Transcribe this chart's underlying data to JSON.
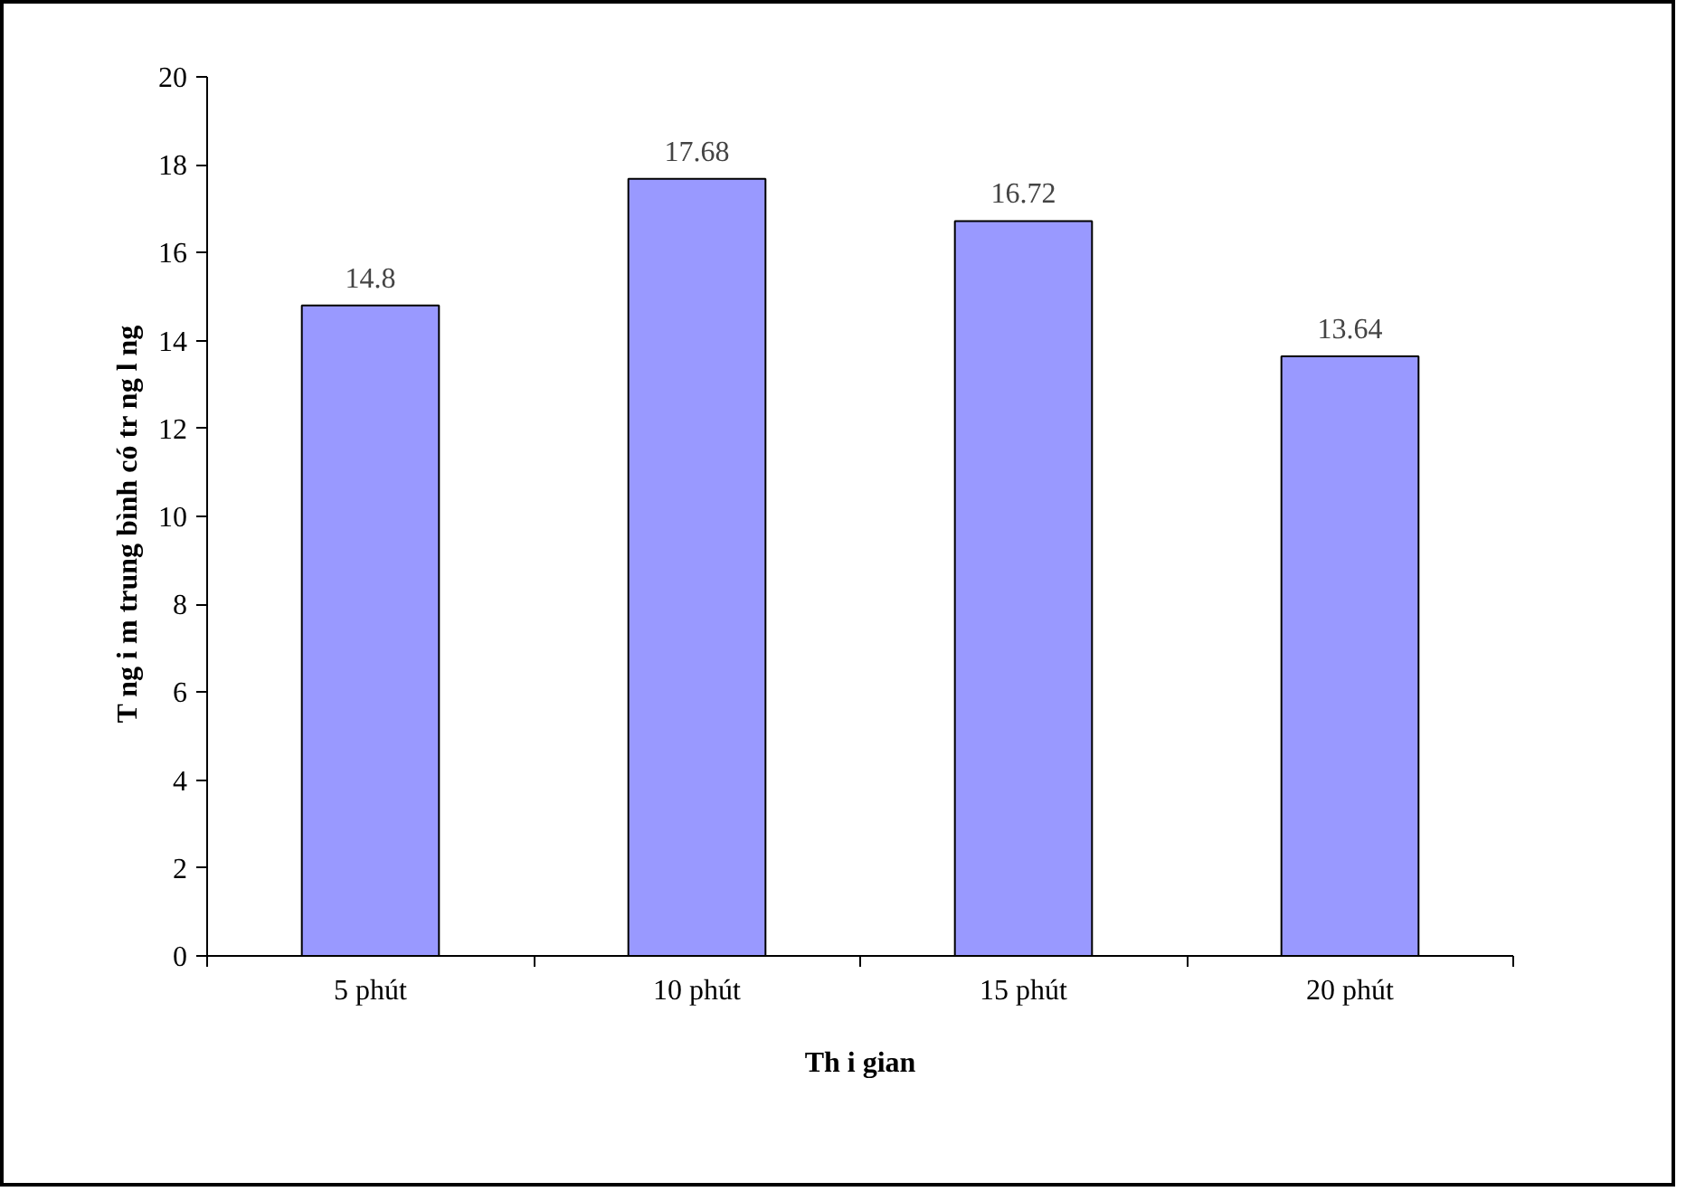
{
  "chart_data": {
    "type": "bar",
    "xlabel": "Th i gian",
    "ylabel": "T ng  i m trung bình có tr ng l  ng",
    "categories": [
      "5 phút",
      "10 phút",
      "15 phút",
      "20 phút"
    ],
    "values": [
      14.8,
      17.68,
      16.72,
      13.64
    ],
    "color": "#9999ff",
    "ylim": [
      0,
      20
    ],
    "yticks": [
      0,
      2,
      4,
      6,
      8,
      10,
      12,
      14,
      16,
      18,
      20
    ],
    "grid": false,
    "data_labels": true
  }
}
